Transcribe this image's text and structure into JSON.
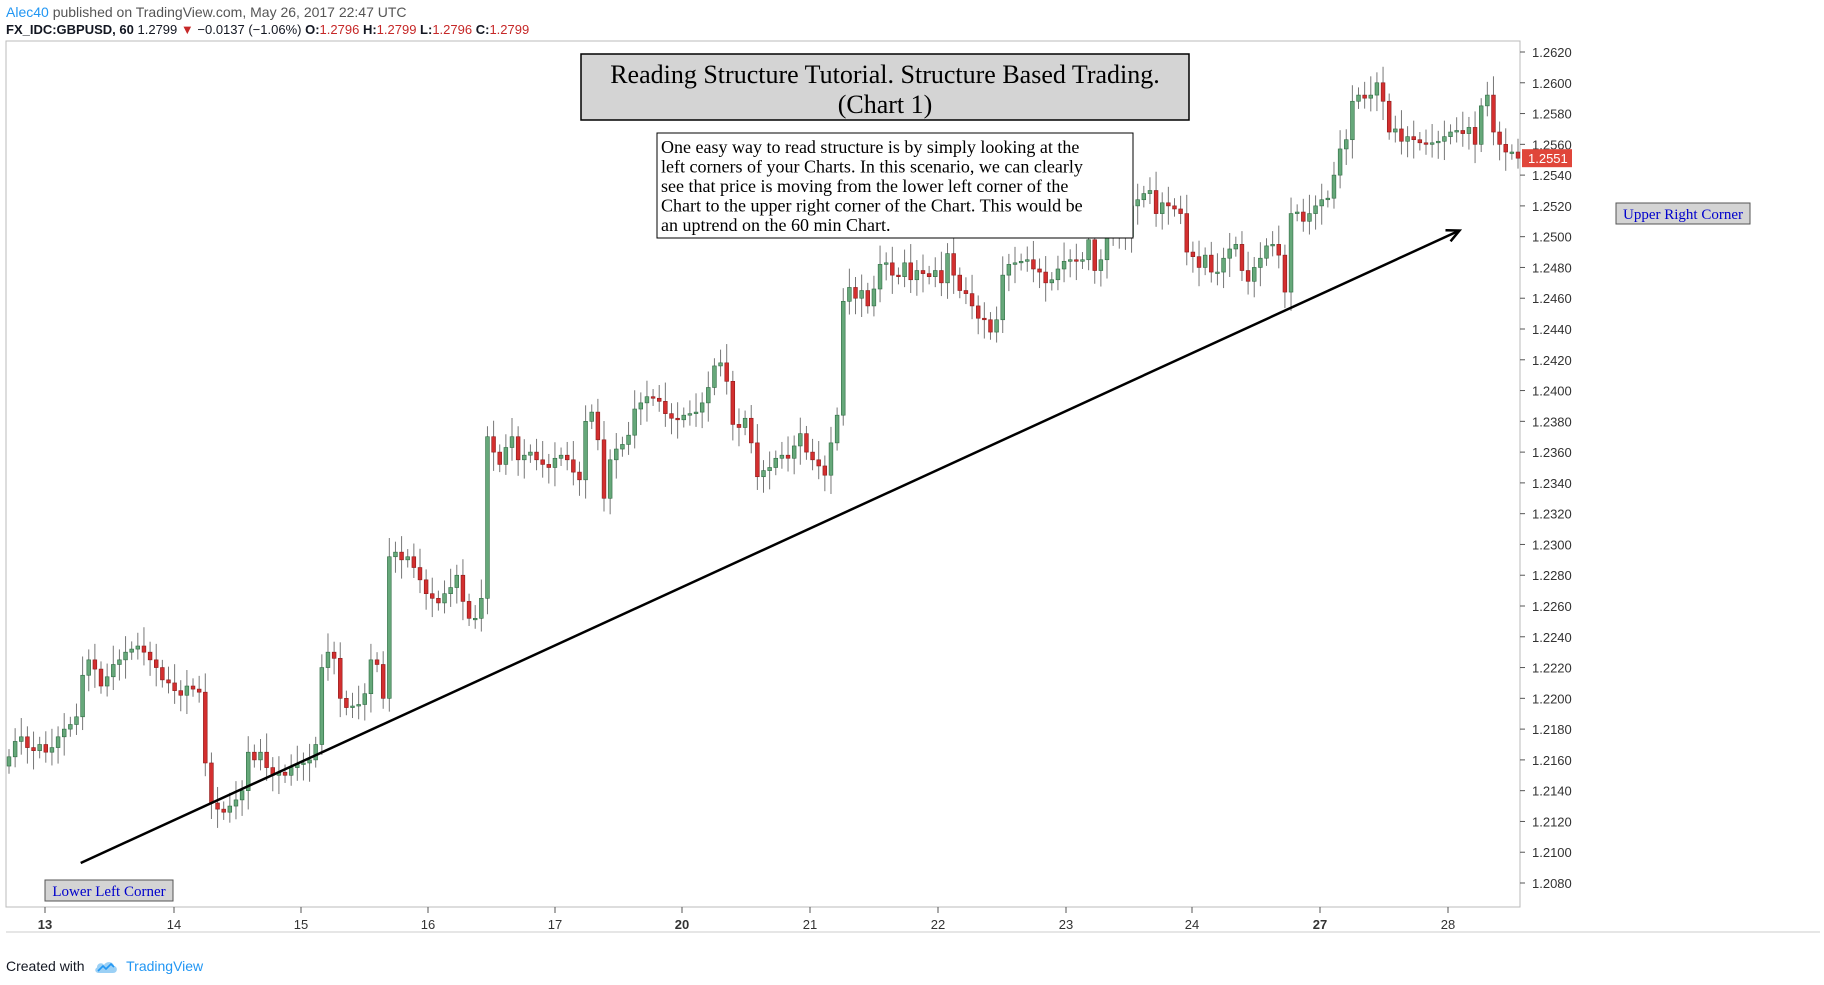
{
  "header": {
    "user": "Alec40",
    "published": "published on TradingView.com, May 26, 2017 22:47 UTC",
    "symbol": "FX_IDC:GBPUSD, 60",
    "last": "1.2799",
    "change": "−0.0137 (−1.06%)",
    "o_label": "O:",
    "o_value": "1.2796",
    "h_label": "H:",
    "h_value": "1.2799",
    "l_label": "L:",
    "l_value": "1.2796",
    "c_label": "C:",
    "c_value": "1.2799"
  },
  "footer": {
    "created_with": "Created with",
    "brand": "TradingView",
    "logo_icon": "tradingview-cloud-icon"
  },
  "colors": {
    "up": "#4caf50",
    "up_fill": "#66a87a",
    "down": "#d32f2f",
    "wick": "#777777",
    "price_tag": "#e0463a",
    "label_text": "#0000cc"
  },
  "chart_data": {
    "type": "candlestick",
    "title": "Reading Structure Tutorial. Structure Based Trading.\n(Chart 1)",
    "annotation": "One easy way to read structure is by simply looking at the left corners of your Charts. In this scenario, we can clearly see that price is moving from the lower left corner of the Chart to the upper right corner of the Chart. This would be an uptrend on the 60 min Chart.",
    "labels": {
      "lower_left": "Lower Left Corner",
      "upper_right": "Upper Right Corner"
    },
    "current_price": "1.2551",
    "xlabels": [
      "13",
      "14",
      "15",
      "16",
      "17",
      "20",
      "21",
      "22",
      "23",
      "24",
      "27",
      "28"
    ],
    "bold_xlabels": [
      "13",
      "20",
      "27"
    ],
    "ylim": [
      1.2074,
      1.2628
    ],
    "yticks": [
      "1.2080",
      "1.2100",
      "1.2120",
      "1.2140",
      "1.2160",
      "1.2180",
      "1.2200",
      "1.2220",
      "1.2240",
      "1.2260",
      "1.2280",
      "1.2300",
      "1.2320",
      "1.2340",
      "1.2360",
      "1.2380",
      "1.2400",
      "1.2420",
      "1.2440",
      "1.2460",
      "1.2480",
      "1.2500",
      "1.2520",
      "1.2540",
      "1.2560",
      "1.2580",
      "1.2600",
      "1.2620"
    ],
    "arrow": {
      "from": [
        0.28,
        1.2093
      ],
      "to": [
        11.09,
        1.2504
      ]
    },
    "closes": [
      1.2162,
      1.2172,
      1.2175,
      1.2168,
      1.2166,
      1.217,
      1.2165,
      1.2168,
      1.2175,
      1.218,
      1.2183,
      1.2188,
      1.2215,
      1.2225,
      1.2219,
      1.2208,
      1.2214,
      1.2222,
      1.2225,
      1.223,
      1.2232,
      1.2234,
      1.223,
      1.2225,
      1.222,
      1.2212,
      1.221,
      1.2205,
      1.2202,
      1.2208,
      1.2206,
      1.2204,
      1.2158,
      1.2132,
      1.2128,
      1.2126,
      1.213,
      1.2134,
      1.214,
      1.2165,
      1.216,
      1.2165,
      1.2155,
      1.215,
      1.2152,
      1.215,
      1.2155,
      1.2157,
      1.2158,
      1.216,
      1.217,
      1.222,
      1.223,
      1.2226,
      1.22,
      1.2194,
      1.2195,
      1.2196,
      1.2203,
      1.2225,
      1.2222,
      1.22,
      1.2292,
      1.2295,
      1.229,
      1.2292,
      1.2285,
      1.2277,
      1.2268,
      1.2265,
      1.2262,
      1.2268,
      1.2272,
      1.228,
      1.2263,
      1.2252,
      1.2252,
      1.2265,
      1.237,
      1.236,
      1.2352,
      1.2363,
      1.237,
      1.2355,
      1.2358,
      1.236,
      1.2355,
      1.2352,
      1.235,
      1.2356,
      1.2358,
      1.2355,
      1.2347,
      1.2342,
      1.238,
      1.2386,
      1.2368,
      1.233,
      1.2355,
      1.2362,
      1.2365,
      1.2371,
      1.2388,
      1.2392,
      1.2396,
      1.2395,
      1.2393,
      1.2385,
      1.2382,
      1.2381,
      1.2384,
      1.2385,
      1.2386,
      1.2392,
      1.2402,
      1.2416,
      1.2418,
      1.2406,
      1.2378,
      1.2376,
      1.2382,
      1.2366,
      1.2344,
      1.2348,
      1.235,
      1.2356,
      1.2358,
      1.2356,
      1.2364,
      1.2372,
      1.236,
      1.2355,
      1.2351,
      1.2345,
      1.2366,
      1.2384,
      1.2458,
      1.2467,
      1.246,
      1.2465,
      1.2455,
      1.2466,
      1.2482,
      1.2483,
      1.2475,
      1.2474,
      1.2483,
      1.2472,
      1.2478,
      1.2476,
      1.2474,
      1.2478,
      1.247,
      1.2489,
      1.2475,
      1.2465,
      1.2463,
      1.2455,
      1.2447,
      1.2446,
      1.2438,
      1.2446,
      1.2475,
      1.2482,
      1.2483,
      1.2484,
      1.2485,
      1.2479,
      1.2477,
      1.247,
      1.2472,
      1.2479,
      1.2484,
      1.2485,
      1.2484,
      1.2485,
      1.2498,
      1.2478,
      1.2485,
      1.2502,
      1.2499,
      1.251,
      1.25,
      1.252,
      1.2524,
      1.2528,
      1.253,
      1.2515,
      1.2522,
      1.252,
      1.2518,
      1.2515,
      1.249,
      1.2487,
      1.248,
      1.2488,
      1.2477,
      1.2477,
      1.2486,
      1.2492,
      1.2495,
      1.2478,
      1.2471,
      1.248,
      1.2486,
      1.2494,
      1.2495,
      1.2488,
      1.2464,
      1.2515,
      1.2516,
      1.251,
      1.2515,
      1.252,
      1.2524,
      1.2525,
      1.254,
      1.2557,
      1.2563,
      1.2588,
      1.2592,
      1.259,
      1.2592,
      1.26,
      1.2588,
      1.2568,
      1.257,
      1.2562,
      1.2565,
      1.2563,
      1.2561,
      1.256,
      1.2561,
      1.2562,
      1.2565,
      1.2568,
      1.2569,
      1.2567,
      1.2571,
      1.256,
      1.2585,
      1.2592,
      1.2568,
      1.256,
      1.2555,
      1.2555,
      1.2551
    ]
  }
}
